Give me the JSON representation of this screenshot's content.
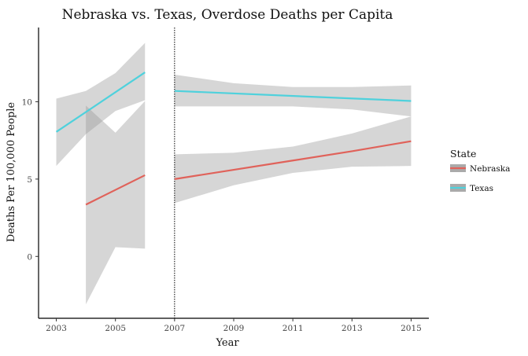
{
  "chart_data": {
    "type": "line",
    "title": "Nebraska vs. Texas, Overdose Deaths per Capita",
    "xlabel": "Year",
    "ylabel": "Deaths Per 100,000 People",
    "xlim": [
      2002.4,
      2015.6
    ],
    "ylim": [
      -4.0,
      14.8
    ],
    "xticks": [
      2003,
      2005,
      2007,
      2009,
      2011,
      2013,
      2015
    ],
    "xtick_labels": [
      "2003",
      "2005",
      "2007",
      "2009",
      "2011",
      "2013",
      "2015"
    ],
    "yticks": [
      0,
      5,
      10
    ],
    "ytick_labels": [
      "0",
      "5",
      "10"
    ],
    "vline_x": 2007,
    "grid": false,
    "legend": {
      "title": "State",
      "position": "right"
    },
    "series": [
      {
        "name": "Nebraska",
        "color": "#e0625a",
        "segments": [
          {
            "x": [
              2004,
              2006
            ],
            "y": [
              3.35,
              5.25
            ],
            "ci_lower": [
              -3.1,
              0.55
            ],
            "ci_upper": [
              9.75,
              10.05
            ],
            "ci_x": [
              2004,
              2005,
              2006
            ],
            "ci_lower_pts": [
              -3.1,
              0.6,
              0.5
            ],
            "ci_upper_pts": [
              9.75,
              8.0,
              10.05
            ]
          },
          {
            "x": [
              2007,
              2009,
              2011,
              2013,
              2015
            ],
            "y": [
              5.0,
              5.6,
              6.2,
              6.8,
              7.45
            ],
            "ci_x": [
              2007,
              2009,
              2011,
              2013,
              2015
            ],
            "ci_lower_pts": [
              3.45,
              4.6,
              5.4,
              5.8,
              5.85
            ],
            "ci_upper_pts": [
              6.6,
              6.7,
              7.1,
              7.95,
              9.05
            ]
          }
        ]
      },
      {
        "name": "Texas",
        "color": "#4fd1dc",
        "segments": [
          {
            "x": [
              2003,
              2006
            ],
            "y": [
              8.05,
              11.9
            ],
            "ci_x": [
              2003,
              2004,
              2005,
              2006
            ],
            "ci_lower_pts": [
              5.85,
              7.9,
              9.4,
              10.1
            ],
            "ci_upper_pts": [
              10.2,
              10.7,
              11.85,
              13.8
            ]
          },
          {
            "x": [
              2007,
              2015
            ],
            "y": [
              10.7,
              10.05
            ],
            "ci_x": [
              2007,
              2009,
              2011,
              2013,
              2015
            ],
            "ci_lower_pts": [
              9.7,
              9.7,
              9.7,
              9.5,
              9.05
            ],
            "ci_upper_pts": [
              11.75,
              11.2,
              10.95,
              10.95,
              11.05
            ]
          }
        ]
      }
    ]
  }
}
